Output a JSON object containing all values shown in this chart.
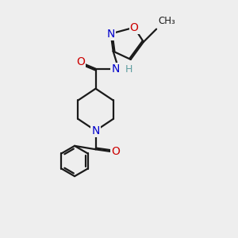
{
  "bg_color": "#eeeeee",
  "bond_color": "#1a1a1a",
  "N_color": "#0000cc",
  "O_color": "#cc0000",
  "H_color": "#5f9ea0",
  "line_width": 1.6,
  "fig_width": 3.0,
  "fig_height": 3.0,
  "dpi": 100,
  "xlim": [
    0,
    10
  ],
  "ylim": [
    0,
    10
  ]
}
